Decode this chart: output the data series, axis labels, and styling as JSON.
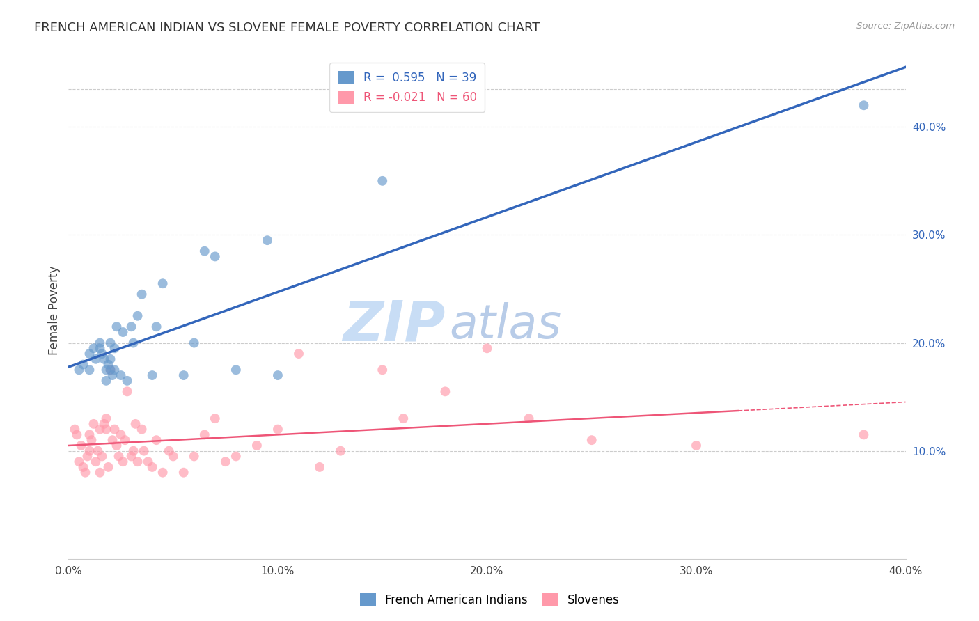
{
  "title": "FRENCH AMERICAN INDIAN VS SLOVENE FEMALE POVERTY CORRELATION CHART",
  "source": "Source: ZipAtlas.com",
  "ylabel": "Female Poverty",
  "xlim": [
    0.0,
    0.4
  ],
  "ylim": [
    0.0,
    0.46
  ],
  "x_ticks": [
    0.0,
    0.1,
    0.2,
    0.3,
    0.4
  ],
  "x_tick_labels": [
    "0.0%",
    "10.0%",
    "20.0%",
    "30.0%",
    "40.0%"
  ],
  "y_ticks_right": [
    0.1,
    0.2,
    0.3,
    0.4
  ],
  "y_tick_labels_right": [
    "10.0%",
    "20.0%",
    "30.0%",
    "40.0%"
  ],
  "r_blue": 0.595,
  "n_blue": 39,
  "r_pink": -0.021,
  "n_pink": 60,
  "blue_color": "#6699CC",
  "pink_color": "#FF99AA",
  "blue_line_color": "#3366BB",
  "pink_line_color": "#EE5577",
  "watermark_zip": "ZIP",
  "watermark_atlas": "atlas",
  "legend_label_blue": "French American Indians",
  "legend_label_pink": "Slovenes",
  "blue_x": [
    0.005,
    0.007,
    0.01,
    0.01,
    0.012,
    0.013,
    0.015,
    0.015,
    0.016,
    0.017,
    0.018,
    0.018,
    0.019,
    0.02,
    0.02,
    0.02,
    0.021,
    0.022,
    0.022,
    0.023,
    0.025,
    0.026,
    0.028,
    0.03,
    0.031,
    0.033,
    0.035,
    0.04,
    0.042,
    0.045,
    0.055,
    0.06,
    0.065,
    0.07,
    0.08,
    0.095,
    0.1,
    0.15,
    0.38
  ],
  "blue_y": [
    0.175,
    0.18,
    0.175,
    0.19,
    0.195,
    0.185,
    0.2,
    0.195,
    0.19,
    0.185,
    0.175,
    0.165,
    0.18,
    0.175,
    0.185,
    0.2,
    0.17,
    0.175,
    0.195,
    0.215,
    0.17,
    0.21,
    0.165,
    0.215,
    0.2,
    0.225,
    0.245,
    0.17,
    0.215,
    0.255,
    0.17,
    0.2,
    0.285,
    0.28,
    0.175,
    0.295,
    0.17,
    0.35,
    0.42
  ],
  "pink_x": [
    0.003,
    0.004,
    0.005,
    0.006,
    0.007,
    0.008,
    0.009,
    0.01,
    0.01,
    0.011,
    0.012,
    0.013,
    0.014,
    0.015,
    0.015,
    0.016,
    0.017,
    0.018,
    0.018,
    0.019,
    0.02,
    0.021,
    0.022,
    0.023,
    0.024,
    0.025,
    0.026,
    0.027,
    0.028,
    0.03,
    0.031,
    0.032,
    0.033,
    0.035,
    0.036,
    0.038,
    0.04,
    0.042,
    0.045,
    0.048,
    0.05,
    0.055,
    0.06,
    0.065,
    0.07,
    0.075,
    0.08,
    0.09,
    0.1,
    0.11,
    0.12,
    0.13,
    0.15,
    0.16,
    0.18,
    0.2,
    0.22,
    0.25,
    0.3,
    0.38
  ],
  "pink_y": [
    0.12,
    0.115,
    0.09,
    0.105,
    0.085,
    0.08,
    0.095,
    0.1,
    0.115,
    0.11,
    0.125,
    0.09,
    0.1,
    0.08,
    0.12,
    0.095,
    0.125,
    0.12,
    0.13,
    0.085,
    0.175,
    0.11,
    0.12,
    0.105,
    0.095,
    0.115,
    0.09,
    0.11,
    0.155,
    0.095,
    0.1,
    0.125,
    0.09,
    0.12,
    0.1,
    0.09,
    0.085,
    0.11,
    0.08,
    0.1,
    0.095,
    0.08,
    0.095,
    0.115,
    0.13,
    0.09,
    0.095,
    0.105,
    0.12,
    0.19,
    0.085,
    0.1,
    0.175,
    0.13,
    0.155,
    0.195,
    0.13,
    0.11,
    0.105,
    0.115
  ]
}
